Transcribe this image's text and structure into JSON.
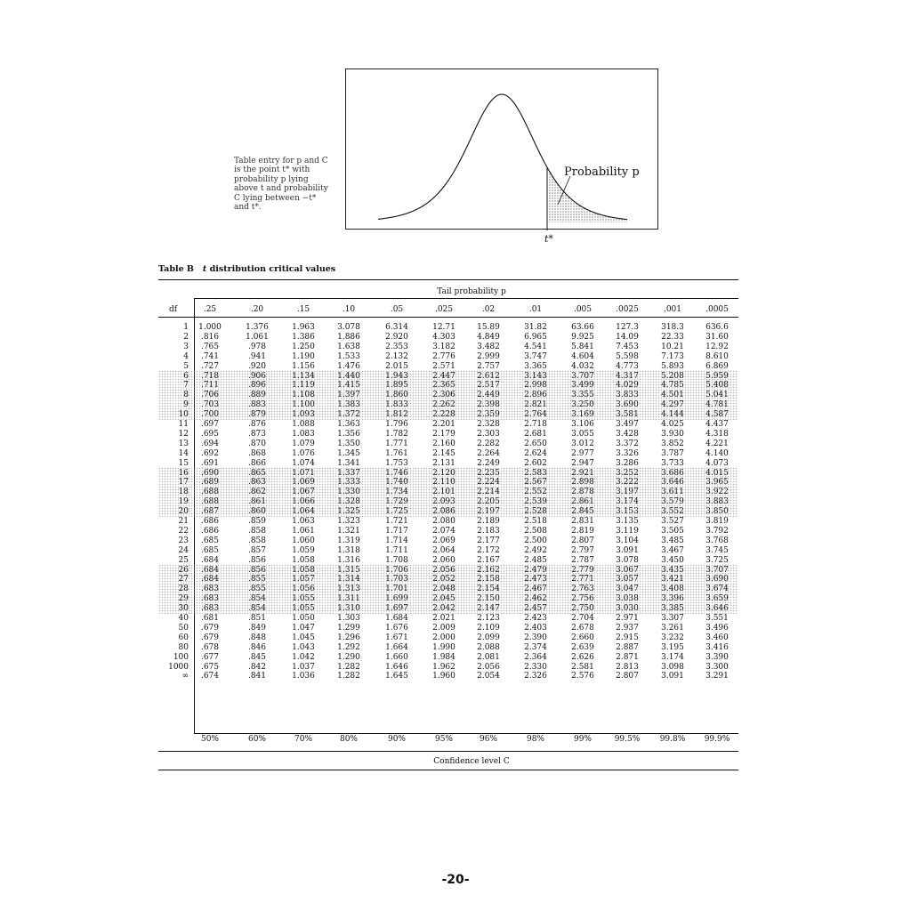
{
  "figure": {
    "caption": "Table entry for p and C is the point t* with probability p lying above t and probability C lying between −t* and t*.",
    "probability_label": "Probability p",
    "tstar_label": "t*"
  },
  "table": {
    "title_prefix": "Table B",
    "title_t": "t",
    "title_rest": "distribution critical values",
    "tail_header": "Tail probability p",
    "df_header": "df",
    "columns": [
      ".25",
      ".20",
      ".15",
      ".10",
      ".05",
      ".025",
      ".02",
      ".01",
      ".005",
      ".0025",
      ".001",
      ".0005"
    ],
    "rows": [
      [
        "1",
        "1.000",
        "1.376",
        "1.963",
        "3.078",
        "6.314",
        "12.71",
        "15.89",
        "31.82",
        "63.66",
        "127.3",
        "318.3",
        "636.6"
      ],
      [
        "2",
        ".816",
        "1.061",
        "1.386",
        "1.886",
        "2.920",
        "4.303",
        "4.849",
        "6.965",
        "9.925",
        "14.09",
        "22.33",
        "31.60"
      ],
      [
        "3",
        ".765",
        ".978",
        "1.250",
        "1.638",
        "2.353",
        "3.182",
        "3.482",
        "4.541",
        "5.841",
        "7.453",
        "10.21",
        "12.92"
      ],
      [
        "4",
        ".741",
        ".941",
        "1.190",
        "1.533",
        "2.132",
        "2.776",
        "2.999",
        "3.747",
        "4.604",
        "5.598",
        "7.173",
        "8.610"
      ],
      [
        "5",
        ".727",
        ".920",
        "1.156",
        "1.476",
        "2.015",
        "2.571",
        "2.757",
        "3.365",
        "4.032",
        "4.773",
        "5.893",
        "6.869"
      ],
      [
        "6",
        ".718",
        ".906",
        "1.134",
        "1.440",
        "1.943",
        "2.447",
        "2.612",
        "3.143",
        "3.707",
        "4.317",
        "5.208",
        "5.959"
      ],
      [
        "7",
        ".711",
        ".896",
        "1.119",
        "1.415",
        "1.895",
        "2.365",
        "2.517",
        "2.998",
        "3.499",
        "4.029",
        "4.785",
        "5.408"
      ],
      [
        "8",
        ".706",
        ".889",
        "1.108",
        "1.397",
        "1.860",
        "2.306",
        "2.449",
        "2.896",
        "3.355",
        "3.833",
        "4.501",
        "5.041"
      ],
      [
        "9",
        ".703",
        ".883",
        "1.100",
        "1.383",
        "1.833",
        "2.262",
        "2.398",
        "2.821",
        "3.250",
        "3.690",
        "4.297",
        "4.781"
      ],
      [
        "10",
        ".700",
        ".879",
        "1.093",
        "1.372",
        "1.812",
        "2.228",
        "2.359",
        "2.764",
        "3.169",
        "3.581",
        "4.144",
        "4.587"
      ],
      [
        "11",
        ".697",
        ".876",
        "1.088",
        "1.363",
        "1.796",
        "2.201",
        "2.328",
        "2.718",
        "3.106",
        "3.497",
        "4.025",
        "4.437"
      ],
      [
        "12",
        ".695",
        ".873",
        "1.083",
        "1.356",
        "1.782",
        "2.179",
        "2.303",
        "2.681",
        "3.055",
        "3.428",
        "3.930",
        "4.318"
      ],
      [
        "13",
        ".694",
        ".870",
        "1.079",
        "1.350",
        "1.771",
        "2.160",
        "2.282",
        "2.650",
        "3.012",
        "3.372",
        "3.852",
        "4.221"
      ],
      [
        "14",
        ".692",
        ".868",
        "1.076",
        "1.345",
        "1.761",
        "2.145",
        "2.264",
        "2.624",
        "2.977",
        "3.326",
        "3.787",
        "4.140"
      ],
      [
        "15",
        ".691",
        ".866",
        "1.074",
        "1.341",
        "1.753",
        "2.131",
        "2.249",
        "2.602",
        "2.947",
        "3.286",
        "3.733",
        "4.073"
      ],
      [
        "16",
        ".690",
        ".865",
        "1.071",
        "1.337",
        "1.746",
        "2.120",
        "2.235",
        "2.583",
        "2.921",
        "3.252",
        "3.686",
        "4.015"
      ],
      [
        "17",
        ".689",
        ".863",
        "1.069",
        "1.333",
        "1.740",
        "2.110",
        "2.224",
        "2.567",
        "2.898",
        "3.222",
        "3.646",
        "3.965"
      ],
      [
        "18",
        ".688",
        ".862",
        "1.067",
        "1.330",
        "1.734",
        "2.101",
        "2.214",
        "2.552",
        "2.878",
        "3.197",
        "3.611",
        "3.922"
      ],
      [
        "19",
        ".688",
        ".861",
        "1.066",
        "1.328",
        "1.729",
        "2.093",
        "2.205",
        "2.539",
        "2.861",
        "3.174",
        "3.579",
        "3.883"
      ],
      [
        "20",
        ".687",
        ".860",
        "1.064",
        "1.325",
        "1.725",
        "2.086",
        "2.197",
        "2.528",
        "2.845",
        "3.153",
        "3.552",
        "3.850"
      ],
      [
        "21",
        ".686",
        ".859",
        "1.063",
        "1.323",
        "1.721",
        "2.080",
        "2.189",
        "2.518",
        "2.831",
        "3.135",
        "3.527",
        "3.819"
      ],
      [
        "22",
        ".686",
        ".858",
        "1.061",
        "1.321",
        "1.717",
        "2.074",
        "2.183",
        "2.508",
        "2.819",
        "3.119",
        "3.505",
        "3.792"
      ],
      [
        "23",
        ".685",
        ".858",
        "1.060",
        "1.319",
        "1.714",
        "2.069",
        "2.177",
        "2.500",
        "2.807",
        "3.104",
        "3.485",
        "3.768"
      ],
      [
        "24",
        ".685",
        ".857",
        "1.059",
        "1.318",
        "1.711",
        "2.064",
        "2.172",
        "2.492",
        "2.797",
        "3.091",
        "3.467",
        "3.745"
      ],
      [
        "25",
        ".684",
        ".856",
        "1.058",
        "1.316",
        "1.708",
        "2.060",
        "2.167",
        "2.485",
        "2.787",
        "3.078",
        "3.450",
        "3.725"
      ],
      [
        "26",
        ".684",
        ".856",
        "1.058",
        "1.315",
        "1.706",
        "2.056",
        "2.162",
        "2.479",
        "2.779",
        "3.067",
        "3.435",
        "3.707"
      ],
      [
        "27",
        ".684",
        ".855",
        "1.057",
        "1.314",
        "1.703",
        "2.052",
        "2.158",
        "2.473",
        "2.771",
        "3.057",
        "3.421",
        "3.690"
      ],
      [
        "28",
        ".683",
        ".855",
        "1.056",
        "1.313",
        "1.701",
        "2.048",
        "2.154",
        "2.467",
        "2.763",
        "3.047",
        "3.408",
        "3.674"
      ],
      [
        "29",
        ".683",
        ".854",
        "1.055",
        "1.311",
        "1.699",
        "2.045",
        "2.150",
        "2.462",
        "2.756",
        "3.038",
        "3.396",
        "3.659"
      ],
      [
        "30",
        ".683",
        ".854",
        "1.055",
        "1.310",
        "1.697",
        "2.042",
        "2.147",
        "2.457",
        "2.750",
        "3.030",
        "3.385",
        "3.646"
      ],
      [
        "40",
        ".681",
        ".851",
        "1.050",
        "1.303",
        "1.684",
        "2.021",
        "2.123",
        "2.423",
        "2.704",
        "2.971",
        "3.307",
        "3.551"
      ],
      [
        "50",
        ".679",
        ".849",
        "1.047",
        "1.299",
        "1.676",
        "2.009",
        "2.109",
        "2.403",
        "2.678",
        "2.937",
        "3.261",
        "3.496"
      ],
      [
        "60",
        ".679",
        ".848",
        "1.045",
        "1.296",
        "1.671",
        "2.000",
        "2.099",
        "2.390",
        "2.660",
        "2.915",
        "3.232",
        "3.460"
      ],
      [
        "80",
        ".678",
        ".846",
        "1.043",
        "1.292",
        "1.664",
        "1.990",
        "2.088",
        "2.374",
        "2.639",
        "2.887",
        "3.195",
        "3.416"
      ],
      [
        "100",
        ".677",
        ".845",
        "1.042",
        "1.290",
        "1.660",
        "1.984",
        "2.081",
        "2.364",
        "2.626",
        "2.871",
        "3.174",
        "3.390"
      ],
      [
        "1000",
        ".675",
        ".842",
        "1.037",
        "1.282",
        "1.646",
        "1.962",
        "2.056",
        "2.330",
        "2.581",
        "2.813",
        "3.098",
        "3.300"
      ],
      [
        "∞",
        ".674",
        ".841",
        "1.036",
        "1.282",
        "1.645",
        "1.960",
        "2.054",
        "2.326",
        "2.576",
        "2.807",
        "3.091",
        "3.291"
      ]
    ],
    "confidence_levels": [
      "50%",
      "60%",
      "70%",
      "80%",
      "90%",
      "95%",
      "96%",
      "98%",
      "99%",
      "99.5%",
      "99.8%",
      "99.9%"
    ],
    "confidence_label": "Confidence level C"
  },
  "page_number": "-20-"
}
